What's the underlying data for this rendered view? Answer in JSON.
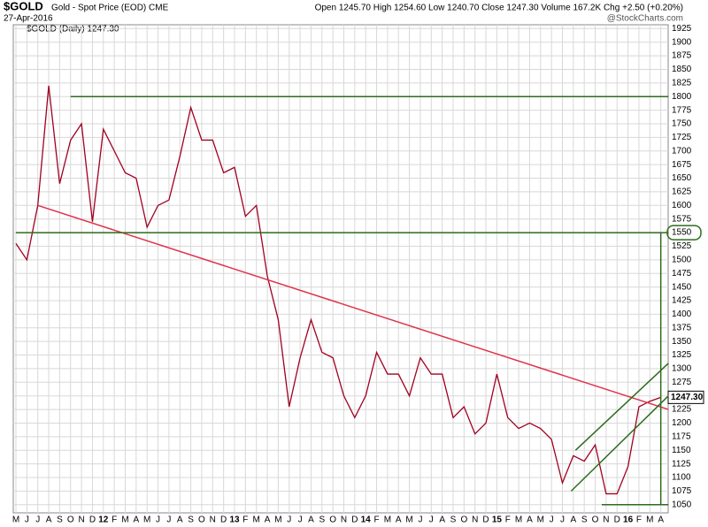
{
  "chart_data": {
    "type": "line",
    "title": "$GOLD",
    "subtitle": "Gold - Spot Price (EOD) CME",
    "date": "27-Apr-2016",
    "quote": "Open 1245.70  High 1254.60  Low 1240.70  Close 1247.30  Volume 167.2K  Chg +2.50 (+0.20%)",
    "credit": "@StockCharts.com",
    "legend_label": "$GOLD (Daily) 1247.30",
    "last_price_label": "1247.30",
    "categories": [
      "M",
      "J",
      "J",
      "A",
      "S",
      "O",
      "N",
      "D",
      "12",
      "F",
      "M",
      "A",
      "M",
      "J",
      "J",
      "A",
      "S",
      "O",
      "N",
      "D",
      "13",
      "F",
      "M",
      "A",
      "M",
      "J",
      "J",
      "A",
      "S",
      "O",
      "N",
      "D",
      "14",
      "F",
      "M",
      "A",
      "M",
      "J",
      "J",
      "A",
      "S",
      "O",
      "N",
      "D",
      "15",
      "F",
      "M",
      "A",
      "M",
      "J",
      "J",
      "A",
      "S",
      "O",
      "N",
      "D",
      "16",
      "F",
      "M",
      "A"
    ],
    "series": [
      {
        "name": "$GOLD",
        "color": "#a00020",
        "values": [
          1530,
          1500,
          1600,
          1820,
          1640,
          1720,
          1750,
          1570,
          1740,
          1700,
          1660,
          1650,
          1560,
          1600,
          1610,
          1690,
          1780,
          1720,
          1720,
          1660,
          1670,
          1580,
          1600,
          1470,
          1390,
          1230,
          1320,
          1390,
          1330,
          1320,
          1250,
          1210,
          1250,
          1330,
          1290,
          1290,
          1250,
          1320,
          1290,
          1290,
          1210,
          1230,
          1180,
          1200,
          1290,
          1210,
          1190,
          1200,
          1190,
          1170,
          1090,
          1140,
          1130,
          1160,
          1070,
          1070,
          1120,
          1230,
          1240,
          1247.3
        ]
      }
    ],
    "ylim": [
      1035,
      1932
    ],
    "yticks": [
      1050,
      1075,
      1100,
      1125,
      1150,
      1175,
      1200,
      1225,
      1250,
      1275,
      1300,
      1325,
      1350,
      1375,
      1400,
      1425,
      1450,
      1475,
      1500,
      1525,
      1550,
      1575,
      1600,
      1625,
      1650,
      1675,
      1700,
      1725,
      1750,
      1775,
      1800,
      1825,
      1850,
      1875,
      1900,
      1925
    ],
    "circled_tick": 1550,
    "grid": true,
    "trendlines": [
      {
        "color": "#e0304a",
        "from": [
          2,
          1600
        ],
        "to": [
          59.7,
          1225
        ]
      },
      {
        "color": "#2e6b1e",
        "from": [
          5,
          1800
        ],
        "to": [
          59.7,
          1800
        ]
      },
      {
        "color": "#2e6b1e",
        "from": [
          0,
          1550
        ],
        "to": [
          59.7,
          1550
        ]
      },
      {
        "color": "#2e6b1e",
        "from": [
          53.6,
          1050
        ],
        "to": [
          59.7,
          1050
        ]
      },
      {
        "color": "#2e6b1e",
        "from": [
          59,
          1050
        ],
        "to": [
          59,
          1550
        ]
      },
      {
        "color": "#2e6b1e",
        "from": [
          50.8,
          1075
        ],
        "to": [
          59.7,
          1250
        ]
      },
      {
        "color": "#2e6b1e",
        "from": [
          51.2,
          1150
        ],
        "to": [
          59.7,
          1310
        ]
      }
    ]
  }
}
